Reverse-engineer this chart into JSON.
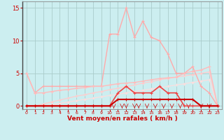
{
  "bg_color": "#cceef0",
  "grid_color": "#aacccc",
  "xlabel": "Vent moyen/en rafales ( km/h )",
  "xlabel_color": "#cc0000",
  "ylim": [
    -0.5,
    16
  ],
  "xlim": [
    -0.5,
    23.5
  ],
  "yticks": [
    0,
    5,
    10,
    15
  ],
  "xticks": [
    0,
    1,
    2,
    3,
    4,
    5,
    6,
    7,
    8,
    9,
    10,
    11,
    12,
    13,
    14,
    15,
    16,
    17,
    18,
    19,
    20,
    21,
    22,
    23
  ],
  "series": [
    {
      "x": [
        0,
        1,
        2,
        3,
        4,
        5,
        6,
        7,
        8,
        9,
        10,
        11,
        12,
        13,
        14,
        15,
        16,
        17,
        18,
        19,
        20,
        21,
        22,
        23
      ],
      "y": [
        0,
        0,
        0,
        0,
        0,
        0,
        0,
        0,
        0,
        0,
        0,
        1,
        1,
        1,
        1,
        1,
        1,
        1,
        1,
        1,
        1,
        0,
        0,
        0
      ],
      "color": "#cc0000",
      "lw": 1.5,
      "marker": "+",
      "ms": 3.5,
      "zorder": 6
    },
    {
      "x": [
        0,
        1,
        2,
        3,
        4,
        5,
        6,
        7,
        8,
        9,
        10,
        11,
        12,
        13,
        14,
        15,
        16,
        17,
        18,
        19,
        20,
        21,
        22,
        23
      ],
      "y": [
        0,
        0,
        0,
        0,
        0,
        0,
        0,
        0,
        0,
        0,
        0,
        2,
        3,
        2,
        2,
        2,
        3,
        2,
        2,
        0,
        0,
        0,
        0,
        0
      ],
      "color": "#ee4444",
      "lw": 1.2,
      "marker": "+",
      "ms": 3.5,
      "zorder": 5
    },
    {
      "x": [
        0,
        1,
        2,
        3,
        4,
        5,
        6,
        7,
        8,
        9,
        10,
        11,
        12,
        13,
        14,
        15,
        16,
        17,
        18,
        19,
        20,
        21,
        22,
        23
      ],
      "y": [
        5,
        2,
        3,
        3,
        3,
        3,
        3,
        3,
        3,
        3,
        11,
        11,
        15,
        10.5,
        13,
        10.5,
        10,
        8,
        5,
        5,
        6,
        3,
        2,
        0
      ],
      "color": "#ffaaaa",
      "lw": 1.0,
      "marker": "+",
      "ms": 3,
      "zorder": 3
    },
    {
      "x": [
        0,
        1,
        2,
        3,
        4,
        5,
        6,
        7,
        8,
        9,
        10,
        11,
        12,
        13,
        14,
        15,
        16,
        17,
        18,
        19,
        20,
        21,
        22,
        23
      ],
      "y": [
        5,
        2,
        2,
        2.2,
        2.4,
        2.5,
        2.7,
        2.8,
        3.0,
        3.0,
        3.2,
        3.4,
        3.5,
        3.6,
        3.8,
        4.0,
        4.2,
        4.3,
        4.4,
        5.0,
        5.3,
        5.5,
        6.0,
        0
      ],
      "color": "#ffbbbb",
      "lw": 1.0,
      "marker": "+",
      "ms": 3,
      "zorder": 4
    },
    {
      "x": [
        0,
        1,
        2,
        3,
        4,
        5,
        6,
        7,
        8,
        9,
        10,
        11,
        12,
        13,
        14,
        15,
        16,
        17,
        18,
        19,
        20,
        21,
        22,
        23
      ],
      "y": [
        0,
        0,
        0.3,
        0.6,
        0.9,
        1.2,
        1.5,
        1.7,
        2.0,
        2.2,
        2.5,
        2.7,
        3.0,
        3.2,
        3.5,
        3.7,
        4.0,
        4.2,
        4.4,
        4.6,
        4.8,
        5.0,
        5.2,
        0
      ],
      "color": "#ffcccc",
      "lw": 0.9,
      "marker": "+",
      "ms": 3,
      "zorder": 2
    },
    {
      "x": [
        0,
        1,
        2,
        3,
        4,
        5,
        6,
        7,
        8,
        9,
        10,
        11,
        12,
        13,
        14,
        15,
        16,
        17,
        18,
        19,
        20,
        21,
        22,
        23
      ],
      "y": [
        0,
        0,
        0,
        0.2,
        0.4,
        0.6,
        0.8,
        1.0,
        1.2,
        1.4,
        1.6,
        1.8,
        2.0,
        2.2,
        2.4,
        2.6,
        2.8,
        3.0,
        3.2,
        3.4,
        3.6,
        3.8,
        4.0,
        0
      ],
      "color": "#ffdddd",
      "lw": 0.8,
      "marker": "+",
      "ms": 2.5,
      "zorder": 1
    }
  ]
}
